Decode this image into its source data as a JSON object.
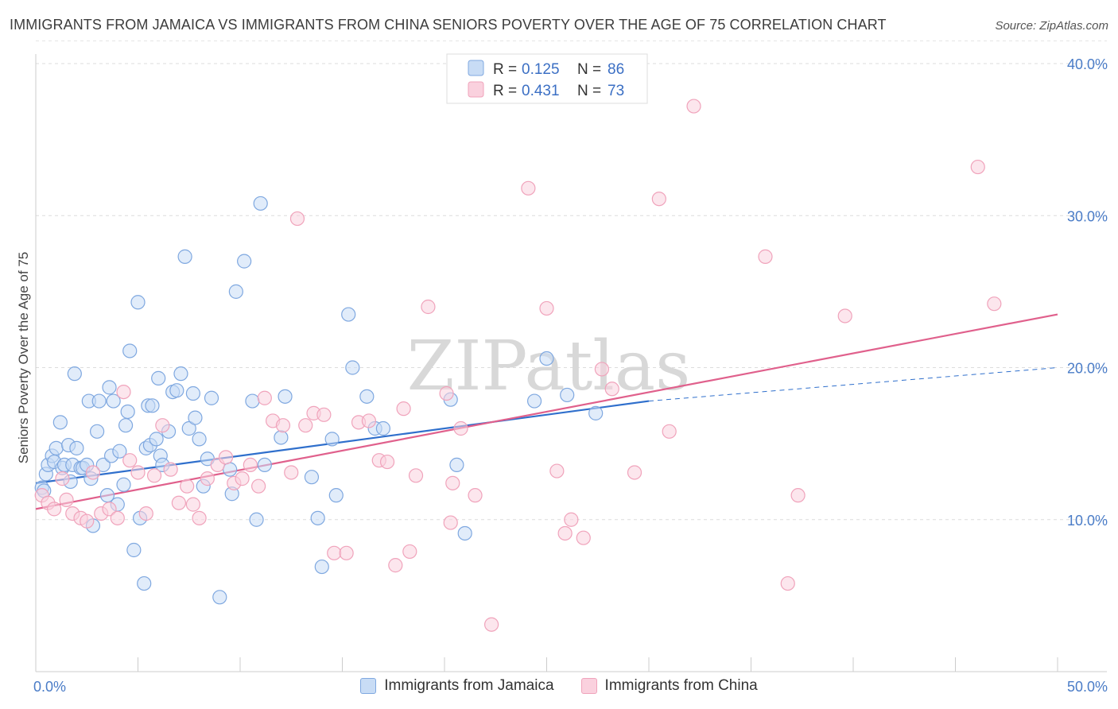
{
  "title": "IMMIGRANTS FROM JAMAICA VS IMMIGRANTS FROM CHINA SENIORS POVERTY OVER THE AGE OF 75 CORRELATION CHART",
  "source": "Source: ZipAtlas.com",
  "watermark": "ZIPatlas",
  "legend": {
    "rows": [
      {
        "r_label": "R =",
        "r_value": "0.125",
        "n_label": "N =",
        "n_value": "86"
      },
      {
        "r_label": "R =",
        "r_value": "0.431",
        "n_label": "N =",
        "n_value": "73"
      }
    ]
  },
  "bottom_legend": [
    "Immigrants from Jamaica",
    "Immigrants from China"
  ],
  "chart_data": {
    "type": "scatter",
    "ylabel": "Seniors Poverty Over the Age of 75",
    "xlim": [
      0,
      50
    ],
    "ylim": [
      0,
      40
    ],
    "x_tick_labels": [
      "0.0%",
      "50.0%"
    ],
    "y_ticks": [
      10,
      20,
      30,
      40
    ],
    "y_tick_labels": [
      "10.0%",
      "20.0%",
      "30.0%",
      "40.0%"
    ],
    "grid": "horizontal dashed",
    "series": [
      {
        "name": "Immigrants from Jamaica",
        "color": "#7fa8e0",
        "fill": "#c8dcf5",
        "line_color": "#2f6fcc",
        "trend": {
          "x": [
            0,
            30
          ],
          "y": [
            12.4,
            17.8
          ]
        },
        "trend_dashed": {
          "x": [
            30,
            50
          ],
          "y": [
            17.8,
            20.0
          ]
        },
        "points": [
          [
            0.3,
            12.1
          ],
          [
            0.4,
            11.9
          ],
          [
            0.5,
            13.0
          ],
          [
            0.6,
            13.6
          ],
          [
            0.8,
            14.2
          ],
          [
            0.9,
            13.8
          ],
          [
            1.0,
            14.7
          ],
          [
            1.2,
            16.4
          ],
          [
            1.3,
            13.4
          ],
          [
            1.4,
            13.6
          ],
          [
            1.6,
            14.9
          ],
          [
            1.7,
            12.5
          ],
          [
            1.8,
            13.6
          ],
          [
            1.9,
            19.6
          ],
          [
            2.0,
            14.7
          ],
          [
            2.2,
            13.4
          ],
          [
            2.3,
            13.4
          ],
          [
            2.5,
            13.6
          ],
          [
            2.6,
            17.8
          ],
          [
            2.7,
            12.7
          ],
          [
            2.8,
            9.6
          ],
          [
            3.0,
            15.8
          ],
          [
            3.1,
            17.8
          ],
          [
            3.3,
            13.6
          ],
          [
            3.5,
            11.6
          ],
          [
            3.6,
            18.7
          ],
          [
            3.7,
            14.2
          ],
          [
            3.8,
            17.8
          ],
          [
            4.0,
            11.0
          ],
          [
            4.1,
            14.5
          ],
          [
            4.3,
            12.3
          ],
          [
            4.4,
            16.2
          ],
          [
            4.5,
            17.1
          ],
          [
            4.6,
            21.1
          ],
          [
            4.8,
            8.0
          ],
          [
            5.0,
            24.3
          ],
          [
            5.1,
            10.1
          ],
          [
            5.3,
            5.8
          ],
          [
            5.4,
            14.7
          ],
          [
            5.5,
            17.5
          ],
          [
            5.6,
            14.9
          ],
          [
            5.7,
            17.5
          ],
          [
            5.9,
            15.3
          ],
          [
            6.0,
            19.3
          ],
          [
            6.1,
            14.2
          ],
          [
            6.2,
            13.6
          ],
          [
            6.5,
            15.8
          ],
          [
            6.7,
            18.4
          ],
          [
            6.9,
            18.5
          ],
          [
            7.1,
            19.6
          ],
          [
            7.3,
            27.3
          ],
          [
            7.5,
            16.0
          ],
          [
            7.7,
            18.3
          ],
          [
            7.8,
            16.7
          ],
          [
            8.0,
            15.3
          ],
          [
            8.2,
            12.2
          ],
          [
            8.4,
            14.0
          ],
          [
            8.6,
            18.0
          ],
          [
            9.0,
            4.9
          ],
          [
            9.5,
            13.3
          ],
          [
            9.6,
            11.7
          ],
          [
            9.8,
            25.0
          ],
          [
            10.2,
            27.0
          ],
          [
            10.6,
            17.8
          ],
          [
            10.8,
            10.0
          ],
          [
            11.0,
            30.8
          ],
          [
            11.2,
            13.6
          ],
          [
            12.0,
            15.4
          ],
          [
            12.2,
            18.1
          ],
          [
            13.5,
            12.8
          ],
          [
            13.8,
            10.1
          ],
          [
            14.0,
            6.9
          ],
          [
            14.5,
            15.3
          ],
          [
            14.7,
            11.6
          ],
          [
            15.3,
            23.5
          ],
          [
            15.5,
            20.0
          ],
          [
            16.2,
            18.1
          ],
          [
            16.6,
            16.0
          ],
          [
            17.0,
            16.0
          ],
          [
            20.3,
            17.9
          ],
          [
            20.6,
            13.6
          ],
          [
            21.0,
            9.1
          ],
          [
            24.4,
            17.8
          ],
          [
            25.0,
            20.6
          ],
          [
            26.0,
            18.2
          ],
          [
            27.4,
            17.0
          ]
        ]
      },
      {
        "name": "Immigrants from China",
        "color": "#f0a3bb",
        "fill": "#fad1de",
        "line_color": "#e0608c",
        "trend": {
          "x": [
            0,
            50
          ],
          "y": [
            10.7,
            23.5
          ]
        },
        "points": [
          [
            0.3,
            11.6
          ],
          [
            0.6,
            11.1
          ],
          [
            0.9,
            10.7
          ],
          [
            1.3,
            12.7
          ],
          [
            1.5,
            11.3
          ],
          [
            1.8,
            10.4
          ],
          [
            2.2,
            10.1
          ],
          [
            2.5,
            9.9
          ],
          [
            2.8,
            13.1
          ],
          [
            3.2,
            10.4
          ],
          [
            3.6,
            10.7
          ],
          [
            4.0,
            10.1
          ],
          [
            4.3,
            18.4
          ],
          [
            4.6,
            13.9
          ],
          [
            5.0,
            13.1
          ],
          [
            5.4,
            10.4
          ],
          [
            5.8,
            12.9
          ],
          [
            6.2,
            16.2
          ],
          [
            6.6,
            13.3
          ],
          [
            7.0,
            11.1
          ],
          [
            7.4,
            12.2
          ],
          [
            7.7,
            11.0
          ],
          [
            8.0,
            10.1
          ],
          [
            8.4,
            12.7
          ],
          [
            8.9,
            13.6
          ],
          [
            9.3,
            14.1
          ],
          [
            9.7,
            12.4
          ],
          [
            10.1,
            12.7
          ],
          [
            10.5,
            13.6
          ],
          [
            10.9,
            12.2
          ],
          [
            11.2,
            18.0
          ],
          [
            11.6,
            16.5
          ],
          [
            12.1,
            16.2
          ],
          [
            12.5,
            13.1
          ],
          [
            12.8,
            29.8
          ],
          [
            13.2,
            16.2
          ],
          [
            13.6,
            17.0
          ],
          [
            14.1,
            16.9
          ],
          [
            14.6,
            7.8
          ],
          [
            15.2,
            7.8
          ],
          [
            15.8,
            16.4
          ],
          [
            16.3,
            16.5
          ],
          [
            16.8,
            13.9
          ],
          [
            17.2,
            13.8
          ],
          [
            17.6,
            7.0
          ],
          [
            18.0,
            17.3
          ],
          [
            18.3,
            7.9
          ],
          [
            18.6,
            12.9
          ],
          [
            19.2,
            24.0
          ],
          [
            20.1,
            18.3
          ],
          [
            20.3,
            9.8
          ],
          [
            20.4,
            12.4
          ],
          [
            20.8,
            16.0
          ],
          [
            21.5,
            11.6
          ],
          [
            22.3,
            3.1
          ],
          [
            24.1,
            31.8
          ],
          [
            25.0,
            23.9
          ],
          [
            25.5,
            13.2
          ],
          [
            25.9,
            9.1
          ],
          [
            26.2,
            10.0
          ],
          [
            26.8,
            8.8
          ],
          [
            27.7,
            19.9
          ],
          [
            28.2,
            18.6
          ],
          [
            29.3,
            13.1
          ],
          [
            30.5,
            31.1
          ],
          [
            31.0,
            15.8
          ],
          [
            32.2,
            37.2
          ],
          [
            35.7,
            27.3
          ],
          [
            36.8,
            5.8
          ],
          [
            37.3,
            11.6
          ],
          [
            39.6,
            23.4
          ],
          [
            46.1,
            33.2
          ],
          [
            46.9,
            24.2
          ]
        ]
      }
    ]
  }
}
